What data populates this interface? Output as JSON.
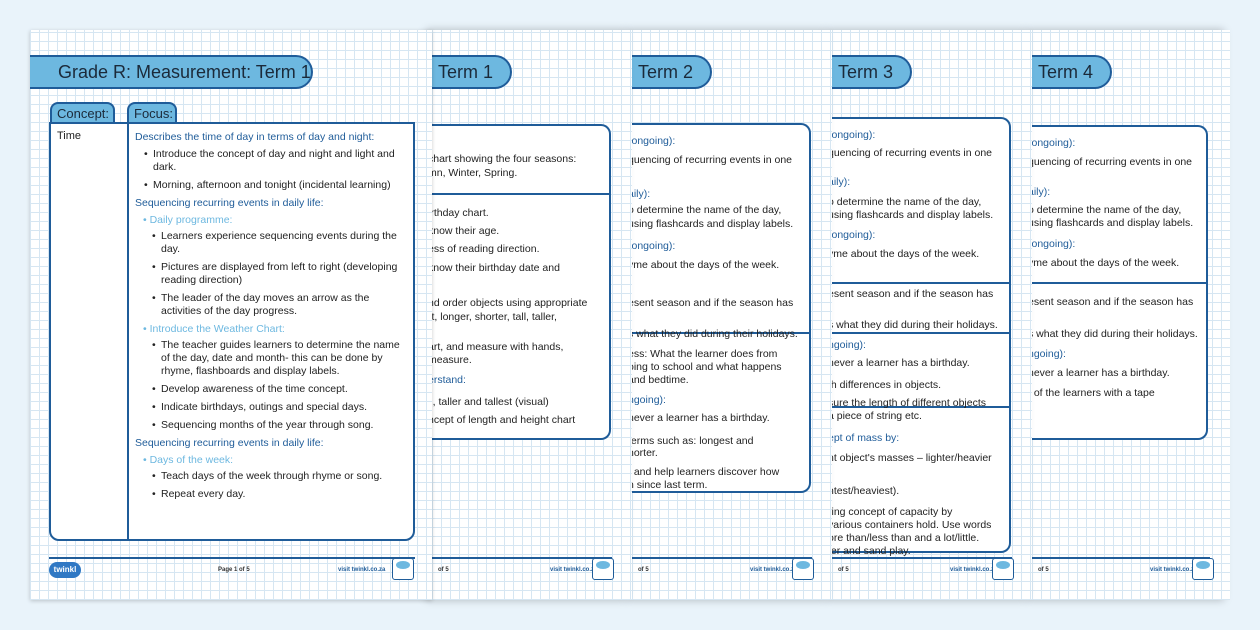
{
  "page1": {
    "title": "Grade R: Measurement: Term 1",
    "concept_tab": "Concept:",
    "focus_tab": "Focus:",
    "concept": "Time",
    "h1": "Describes the time of day in terms of day and night:",
    "b1": [
      "Introduce the concept of day and night and light and dark.",
      "Morning, afternoon and tonight (incidental learning)"
    ],
    "h2": "Sequencing recurring events in daily life:",
    "sub1": "Daily programme:",
    "sub1_items": [
      "Learners experience sequencing events during the day.",
      "Pictures are displayed from left to right (developing reading direction)",
      "The leader of the day moves an arrow as the activities of the day progress."
    ],
    "sub2": "Introduce the Weather Chart:",
    "sub2_items": [
      "The teacher guides learners to determine the name of the day, date and month- this can be done by rhyme, flashboards and display labels.",
      "Develop awareness of the time concept.",
      "Indicate birthdays, outings and special days.",
      "Sequencing months of the year through song."
    ],
    "h3": "Sequencing recurring events in daily life:",
    "sub3": "Days of the week:",
    "sub3_items": [
      "Teach days of the week through rhyme or song.",
      "Repeat every day."
    ],
    "logo": "twinkl",
    "page": "Page 1 of 5",
    "visit": "visit twinkl.co.za"
  },
  "pages": [
    {
      "title": "Term 1",
      "page": "of 5",
      "visit": "visit twinkl.co.za",
      "lines": [
        "chart showing the four seasons:",
        "mn, Winter, Spring.",
        "irthday chart.",
        "know their age.",
        "ess of reading direction.",
        "know their birthday date and",
        "nd order objects using appropriate",
        "rt, longer, shorter, tall, taller,",
        "art, and measure with hands,",
        "measure.",
        "erstand:",
        "ll, taller and tallest (visual)",
        "ncept of length and height chart"
      ]
    },
    {
      "title": "Term 2",
      "page": "of 5",
      "visit": "visit twinkl.co.za",
      "lines": [
        "(ongoing):",
        "quencing of recurring events in one",
        "aily):",
        "o determine the name of the day,",
        "using flashcards and display labels.",
        "(ongoing):",
        "yme about the days of the week.",
        "esent season and if the season has",
        "s what they did during their holidays.",
        "ess: What the learner does from",
        "oing to school and what happens",
        "and bedtime.",
        "ngoing):",
        "never a learner has a birthday.",
        "terms such as: longest and",
        "horter.",
        "t and help learners discover how",
        "n since last term."
      ]
    },
    {
      "title": "Term 3",
      "page": "of 5",
      "visit": "visit twinkl.co.za",
      "lines": [
        "(ongoing):",
        "quencing of recurring events in one",
        "aily):",
        "o determine the name of the day,",
        "using flashcards and display labels.",
        "(ongoing):",
        "yme about the days of the week.",
        "esent season and if the season has",
        "s what they did during their holidays.",
        "ngoing):",
        "never a learner has a birthday.",
        "th differences in objects.",
        "sure the length of different objects",
        "a piece of string etc.",
        "ept of mass by:",
        "nt object's masses – lighter/heavier",
        "htest/heaviest).",
        "ring concept of capacity by",
        "various containers hold. Use words",
        "ore than/less than and a lot/little.",
        "ter and sand play."
      ]
    },
    {
      "title": "Term 4",
      "page": "of 5",
      "visit": "visit twinkl.co.za",
      "lines": [
        "(ongoing):",
        "quencing of recurring events in one",
        "aily):",
        "o determine the name of the day,",
        "using flashcards and display labels.",
        "(ongoing):",
        "yme about the days of the week.",
        "esent season and if the season has",
        "s what they did during their holidays.",
        "ngoing):",
        "never a learner has a birthday.",
        "t of the learners with a tape"
      ]
    }
  ],
  "colors": {
    "accent": "#6db8e0",
    "border": "#1f5c99"
  }
}
